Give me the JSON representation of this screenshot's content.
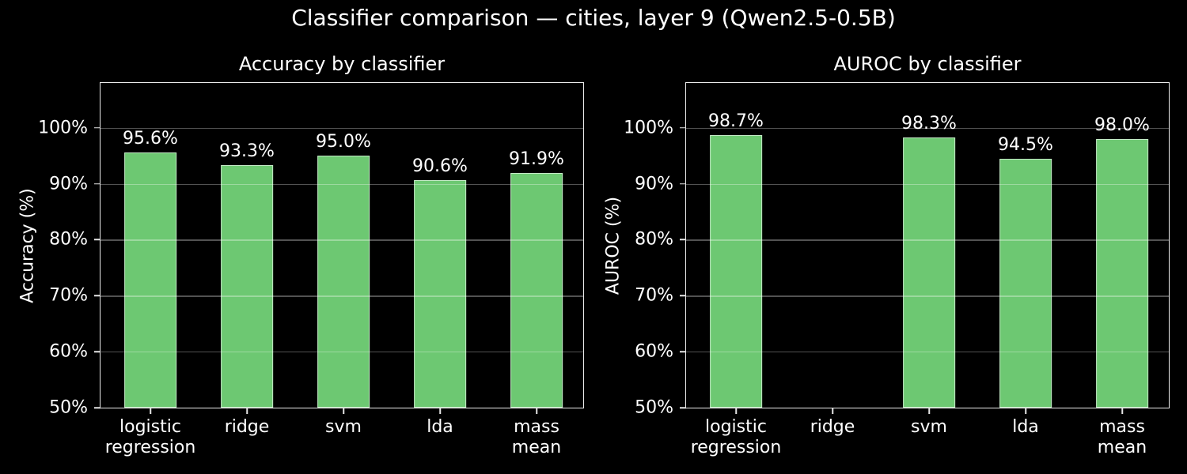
{
  "figure": {
    "title": "Classifier comparison — cities, layer 9 (Qwen2.5-0.5B)",
    "background_color": "#000000",
    "text_color": "#ffffff",
    "bar_color": "#6dc872",
    "bar_edge_color": "rgba(255,255,255,0.6)",
    "grid_color": "rgba(255,255,255,0.32)"
  },
  "chart_data": [
    {
      "type": "bar",
      "title": "Accuracy by classifier",
      "xlabel": "",
      "ylabel": "Accuracy (%)",
      "categories": [
        "logistic\nregression",
        "ridge",
        "svm",
        "lda",
        "mass\nmean"
      ],
      "values": [
        95.6,
        93.3,
        95.0,
        90.6,
        91.9
      ],
      "value_labels": [
        "95.6%",
        "93.3%",
        "95.0%",
        "90.6%",
        "91.9%"
      ],
      "ylim": [
        50,
        108
      ],
      "yticks": [
        50,
        60,
        70,
        80,
        90,
        100
      ],
      "ytick_labels": [
        "50%",
        "60%",
        "70%",
        "80%",
        "90%",
        "100%"
      ],
      "grid": true,
      "legend": "none"
    },
    {
      "type": "bar",
      "title": "AUROC by classifier",
      "xlabel": "",
      "ylabel": "AUROC (%)",
      "categories": [
        "logistic\nregression",
        "ridge",
        "svm",
        "lda",
        "mass\nmean"
      ],
      "values": [
        98.7,
        null,
        98.3,
        94.5,
        98.0
      ],
      "value_labels": [
        "98.7%",
        "",
        "98.3%",
        "94.5%",
        "98.0%"
      ],
      "ylim": [
        50,
        108
      ],
      "yticks": [
        50,
        60,
        70,
        80,
        90,
        100
      ],
      "ytick_labels": [
        "50%",
        "60%",
        "70%",
        "80%",
        "90%",
        "100%"
      ],
      "grid": true,
      "legend": "none"
    }
  ]
}
